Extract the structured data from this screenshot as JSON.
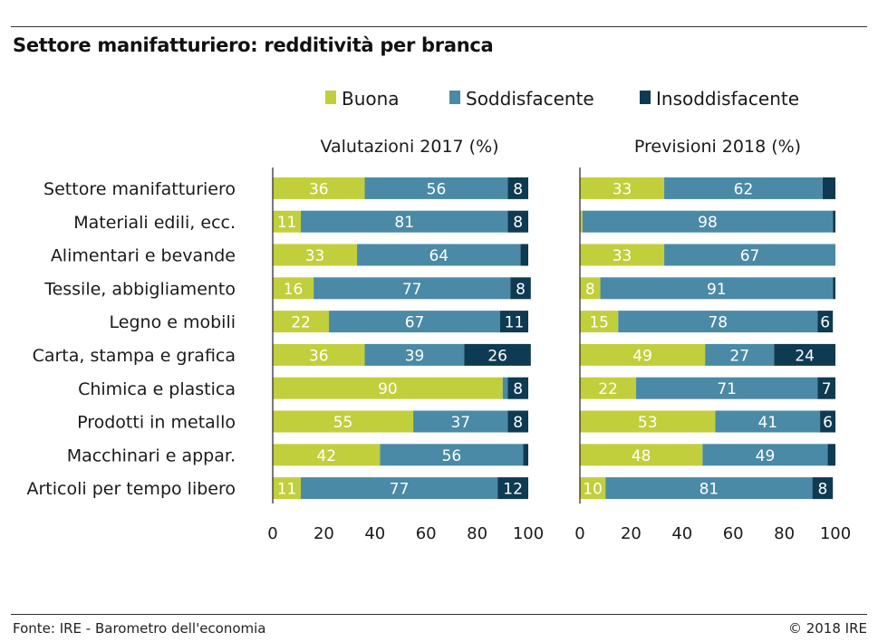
{
  "title": "Settore manifatturiero: redditività per branca",
  "footer": {
    "source": "Fonte: IRE - Barometro dell'economia",
    "copyright": "© 2018 IRE"
  },
  "chart_data": {
    "type": "bar",
    "orientation": "horizontal",
    "stacked": true,
    "categories": [
      "Settore manifatturiero",
      "Materiali edili, ecc.",
      "Alimentari e bevande",
      "Tessile, abbigliamento",
      "Legno e mobili",
      "Carta, stampa e grafica",
      "Chimica e plastica",
      "Prodotti in metallo",
      "Macchinari e appar.",
      "Articoli per tempo libero"
    ],
    "legend": [
      {
        "name": "Buona",
        "color": "#c2cf3c"
      },
      {
        "name": "Soddisfacente",
        "color": "#4a8aa6"
      },
      {
        "name": "Insoddisfacente",
        "color": "#0e3a52"
      }
    ],
    "legend_position": "top",
    "xlim": [
      0,
      100
    ],
    "xticks": [
      "0",
      "20",
      "40",
      "60",
      "80",
      "100"
    ],
    "panels": [
      {
        "title": "Valutazioni 2017 (%)",
        "series": [
          {
            "name": "Buona",
            "values": [
              36,
              11,
              33,
              16,
              22,
              36,
              90,
              55,
              42,
              11
            ]
          },
          {
            "name": "Soddisfacente",
            "values": [
              56,
              81,
              64,
              77,
              67,
              39,
              2,
              37,
              56,
              77
            ]
          },
          {
            "name": "Insoddisfacente",
            "values": [
              8,
              8,
              3,
              8,
              11,
              26,
              8,
              8,
              2,
              12
            ]
          }
        ],
        "labels": [
          [
            "36",
            "56",
            "8"
          ],
          [
            "11",
            "81",
            "8"
          ],
          [
            "33",
            "64",
            ""
          ],
          [
            "16",
            "77",
            "8"
          ],
          [
            "22",
            "67",
            "11"
          ],
          [
            "36",
            "39",
            "26"
          ],
          [
            "90",
            "",
            "8"
          ],
          [
            "55",
            "37",
            "8"
          ],
          [
            "42",
            "56",
            ""
          ],
          [
            "11",
            "77",
            "12"
          ]
        ]
      },
      {
        "title": "Previsioni 2018 (%)",
        "series": [
          {
            "name": "Buona",
            "values": [
              33,
              1,
              33,
              8,
              15,
              49,
              22,
              53,
              48,
              10
            ]
          },
          {
            "name": "Soddisfacente",
            "values": [
              62,
              98,
              67,
              91,
              78,
              27,
              71,
              41,
              49,
              81
            ]
          },
          {
            "name": "Insoddisfacente",
            "values": [
              5,
              1,
              0,
              1,
              6,
              24,
              7,
              6,
              3,
              8
            ]
          }
        ],
        "labels": [
          [
            "33",
            "62",
            ""
          ],
          [
            "",
            "98",
            ""
          ],
          [
            "33",
            "67",
            ""
          ],
          [
            "8",
            "91",
            ""
          ],
          [
            "15",
            "78",
            "6"
          ],
          [
            "49",
            "27",
            "24"
          ],
          [
            "22",
            "71",
            "7"
          ],
          [
            "53",
            "41",
            "6"
          ],
          [
            "48",
            "49",
            ""
          ],
          [
            "10",
            "81",
            "8"
          ]
        ]
      }
    ]
  }
}
